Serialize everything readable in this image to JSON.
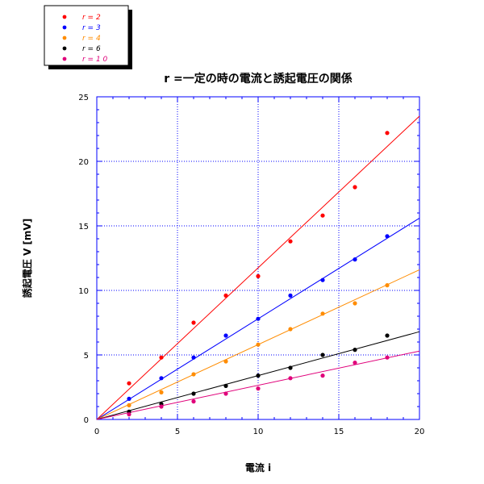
{
  "chart_data": {
    "type": "scatter",
    "title": "r =一定の時の電流と誘起電圧の関係",
    "xlabel": "電流 i",
    "ylabel": "誘起電圧 V [mV]",
    "xlim": [
      0,
      20
    ],
    "ylim": [
      0,
      25
    ],
    "x_ticks": [
      0,
      5,
      10,
      15,
      20
    ],
    "y_ticks": [
      0,
      5,
      10,
      15,
      20,
      25
    ],
    "grid": true,
    "legend_position": "top-left",
    "series": [
      {
        "name": "r = 2",
        "color": "#ff0000",
        "x": [
          2,
          4,
          6,
          8,
          10,
          12,
          14,
          16,
          18
        ],
        "y": [
          2.8,
          4.8,
          7.5,
          9.6,
          11.1,
          13.8,
          15.8,
          18.0,
          22.2
        ],
        "fit": [
          [
            0,
            0
          ],
          [
            20,
            23.5
          ]
        ]
      },
      {
        "name": "r = 3",
        "color": "#0000ff",
        "x": [
          2,
          4,
          6,
          8,
          10,
          12,
          14,
          16,
          18
        ],
        "y": [
          1.6,
          3.2,
          4.8,
          6.5,
          7.8,
          9.6,
          10.8,
          12.4,
          14.2
        ],
        "fit": [
          [
            0,
            0
          ],
          [
            20,
            15.6
          ]
        ]
      },
      {
        "name": "r = 4",
        "color": "#ff8c00",
        "x": [
          2,
          4,
          6,
          8,
          10,
          12,
          14,
          16,
          18
        ],
        "y": [
          1.1,
          2.1,
          3.5,
          4.5,
          5.8,
          7.0,
          8.2,
          9.0,
          10.4
        ],
        "fit": [
          [
            0,
            0
          ],
          [
            20,
            11.6
          ]
        ]
      },
      {
        "name": "r = 6",
        "color": "#000000",
        "x": [
          2,
          4,
          6,
          8,
          10,
          12,
          14,
          16,
          18
        ],
        "y": [
          0.6,
          1.2,
          2.0,
          2.6,
          3.4,
          4.0,
          5.0,
          5.4,
          6.5
        ],
        "fit": [
          [
            0,
            0
          ],
          [
            20,
            6.8
          ]
        ]
      },
      {
        "name": "r = 1 0",
        "color": "#e0007a",
        "x": [
          2,
          4,
          6,
          8,
          10,
          12,
          14,
          16,
          18
        ],
        "y": [
          0.4,
          1.0,
          1.4,
          2.0,
          2.4,
          3.2,
          3.4,
          4.4,
          4.8
        ],
        "fit": [
          [
            0,
            0
          ],
          [
            20,
            5.3
          ]
        ]
      }
    ]
  }
}
